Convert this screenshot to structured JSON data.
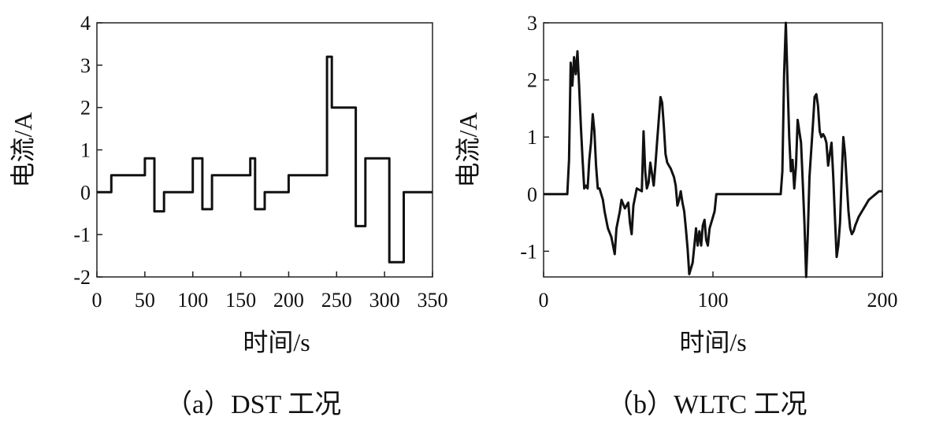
{
  "chart_data": [
    {
      "type": "line",
      "caption": "（a）DST 工况",
      "xlabel": "时间/s",
      "ylabel": "电流/A",
      "xlim": [
        0,
        350
      ],
      "ylim": [
        -2,
        4
      ],
      "xticks": [
        0,
        50,
        100,
        150,
        200,
        250,
        300,
        350
      ],
      "yticks": [
        -2,
        -1,
        0,
        1,
        2,
        3,
        4
      ],
      "grid": false,
      "step": true,
      "x": [
        0,
        15,
        15,
        50,
        50,
        60,
        60,
        70,
        70,
        100,
        100,
        110,
        110,
        120,
        120,
        160,
        160,
        165,
        165,
        175,
        175,
        200,
        200,
        240,
        240,
        245,
        245,
        270,
        270,
        280,
        280,
        305,
        305,
        320,
        320,
        350
      ],
      "y": [
        0,
        0,
        0.4,
        0.4,
        0.8,
        0.8,
        -0.45,
        -0.45,
        0,
        0,
        0.8,
        0.8,
        -0.4,
        -0.4,
        0.4,
        0.4,
        0.8,
        0.8,
        -0.4,
        -0.4,
        0,
        0,
        0.4,
        0.4,
        3.2,
        3.2,
        2,
        2,
        -0.8,
        -0.8,
        0.8,
        0.8,
        -1.65,
        -1.65,
        0,
        0
      ]
    },
    {
      "type": "line",
      "caption": "（b）WLTC 工况",
      "xlabel": "时间/s",
      "ylabel": "电流/A",
      "xlim": [
        0,
        200
      ],
      "ylim": [
        -1.45,
        3
      ],
      "xticks": [
        0,
        100,
        200
      ],
      "xticklabels": [
        "0",
        "100",
        "200"
      ],
      "yticks": [
        -1,
        0,
        1,
        2,
        3
      ],
      "grid": false,
      "x": [
        0,
        14,
        15,
        16,
        17,
        18,
        19,
        20,
        21,
        22,
        23,
        24,
        25,
        26,
        27,
        28,
        29,
        30,
        31,
        32,
        33,
        35,
        36,
        37,
        38,
        40,
        42,
        43,
        45,
        46,
        48,
        50,
        51,
        52,
        53,
        55,
        58,
        59,
        60,
        61,
        62,
        63,
        65,
        66,
        67,
        68,
        69,
        70,
        71,
        72,
        73,
        74,
        75,
        77,
        78,
        79,
        80,
        81,
        82,
        83,
        84,
        85,
        86,
        88,
        89,
        90,
        91,
        92,
        93,
        94,
        95,
        96,
        97,
        98,
        100,
        101,
        102,
        105,
        140,
        141,
        142,
        143,
        144,
        145,
        146,
        147,
        148,
        149,
        150,
        151,
        152,
        153,
        154,
        155,
        156,
        157,
        159,
        160,
        161,
        162,
        163,
        164,
        165,
        166,
        167,
        168,
        169,
        170,
        171,
        172,
        173,
        174,
        175,
        176,
        177,
        178,
        179,
        180,
        181,
        182,
        183,
        184,
        186,
        188,
        190,
        192,
        194,
        196,
        198,
        200
      ],
      "y": [
        0,
        0,
        0.6,
        2.3,
        1.9,
        2.4,
        2.1,
        2.5,
        1.9,
        1.2,
        0.6,
        0.1,
        0.15,
        0.1,
        0.6,
        0.9,
        1.4,
        1.1,
        0.5,
        0.1,
        0.1,
        -0.1,
        -0.3,
        -0.45,
        -0.6,
        -0.75,
        -1.05,
        -0.6,
        -0.3,
        -0.1,
        -0.25,
        -0.15,
        -0.5,
        -0.7,
        -0.2,
        0.1,
        0.05,
        1.1,
        0.4,
        0.1,
        0.2,
        0.55,
        0.15,
        0.5,
        0.9,
        1.3,
        1.7,
        1.6,
        1.2,
        0.7,
        0.55,
        0.5,
        0.45,
        0.3,
        0.15,
        -0.2,
        -0.1,
        0.05,
        -0.15,
        -0.3,
        -0.6,
        -0.95,
        -1.4,
        -1.2,
        -0.9,
        -0.6,
        -0.9,
        -0.65,
        -0.9,
        -0.55,
        -0.45,
        -0.8,
        -0.9,
        -0.6,
        -0.4,
        -0.3,
        0,
        0,
        0,
        0.4,
        2.1,
        3,
        2.0,
        1.0,
        0.4,
        0.6,
        0.1,
        0.5,
        1.3,
        1.1,
        0.9,
        0.2,
        -0.5,
        -1.45,
        -0.7,
        0.3,
        1.2,
        1.7,
        1.75,
        1.55,
        1.1,
        1.0,
        1.05,
        1.0,
        0.9,
        0.5,
        0.7,
        0.9,
        0.3,
        -0.4,
        -1.1,
        -0.9,
        -0.5,
        0.3,
        1.0,
        0.7,
        0.2,
        -0.3,
        -0.6,
        -0.7,
        -0.65,
        -0.55,
        -0.4,
        -0.3,
        -0.2,
        -0.1,
        -0.05,
        0,
        0.05,
        0.05
      ]
    }
  ]
}
